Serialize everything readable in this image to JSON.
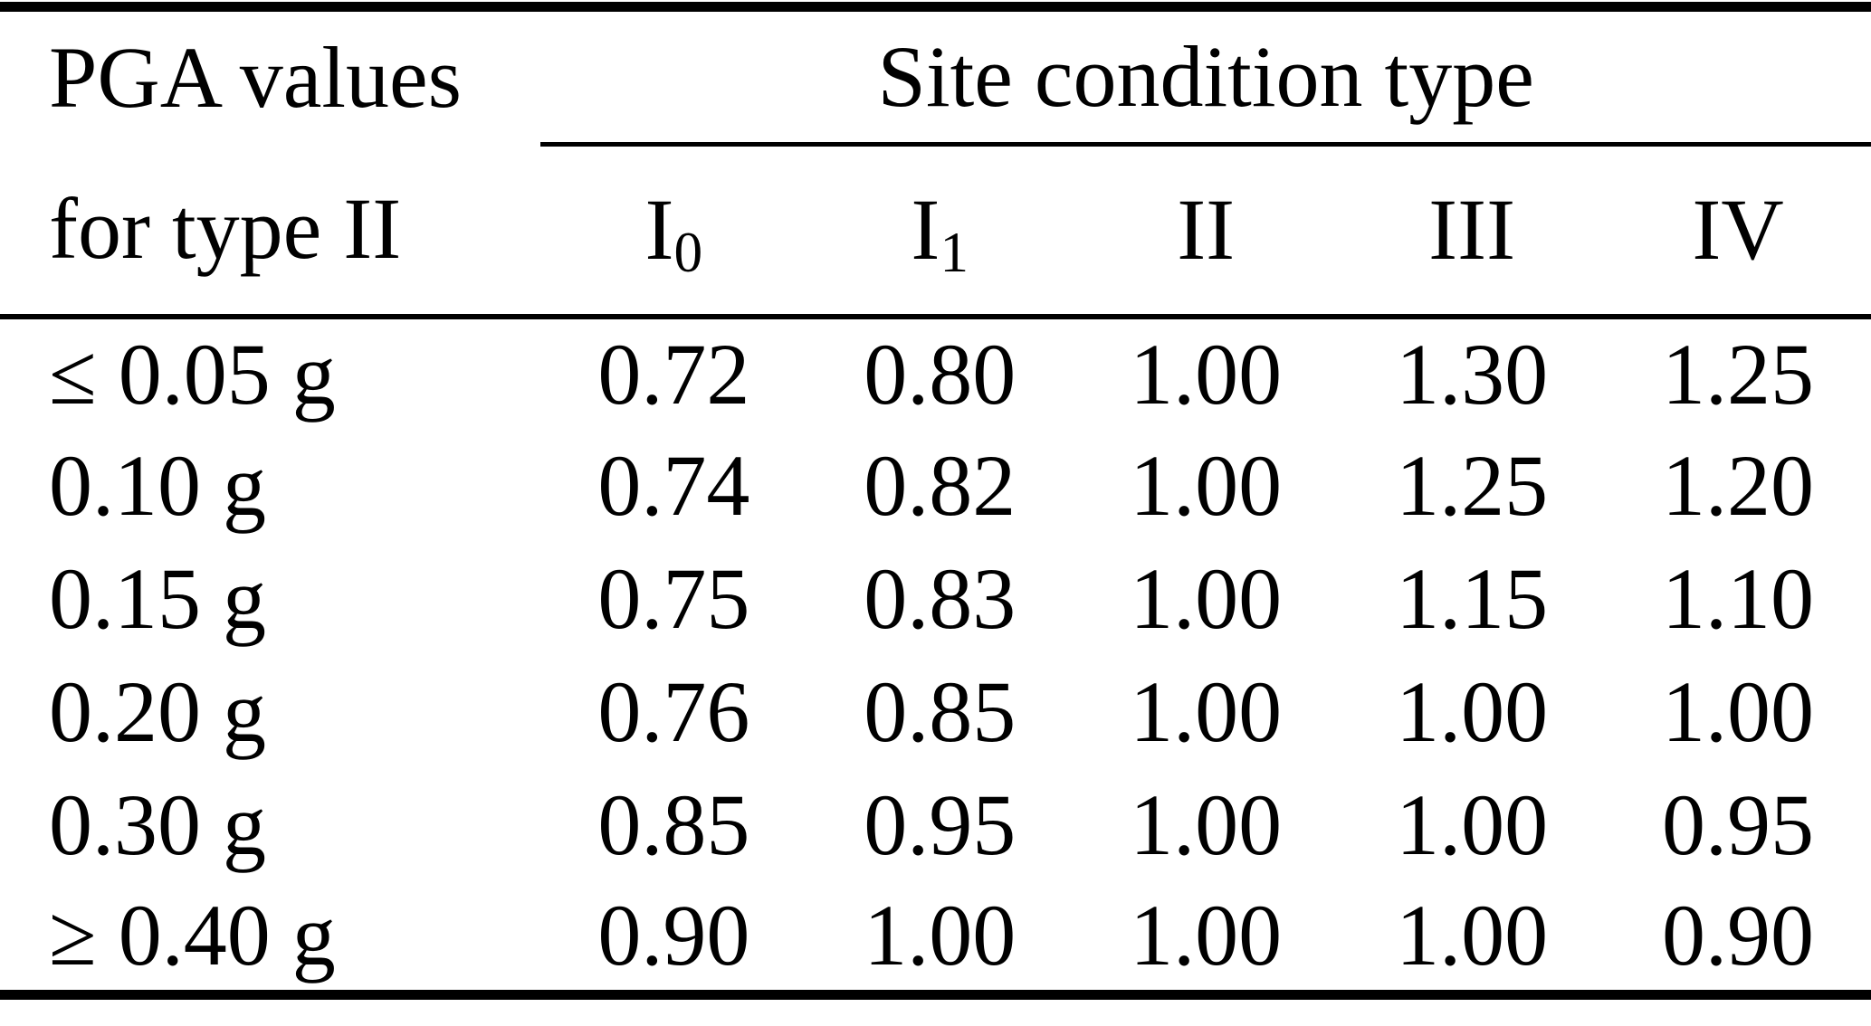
{
  "table": {
    "row_header": {
      "line1": "PGA values",
      "line2": "for type II"
    },
    "spanner": "Site condition type",
    "col_headers": [
      {
        "base": "I",
        "sub": "0"
      },
      {
        "base": "I",
        "sub": "1"
      },
      {
        "base": "II",
        "sub": ""
      },
      {
        "base": "III",
        "sub": ""
      },
      {
        "base": "IV",
        "sub": ""
      }
    ],
    "rows": [
      {
        "label": "≤ 0.05 g",
        "values": [
          "0.72",
          "0.80",
          "1.00",
          "1.30",
          "1.25"
        ]
      },
      {
        "label": "0.10 g",
        "values": [
          "0.74",
          "0.82",
          "1.00",
          "1.25",
          "1.20"
        ]
      },
      {
        "label": "0.15 g",
        "values": [
          "0.75",
          "0.83",
          "1.00",
          "1.15",
          "1.10"
        ]
      },
      {
        "label": "0.20 g",
        "values": [
          "0.76",
          "0.85",
          "1.00",
          "1.00",
          "1.00"
        ]
      },
      {
        "label": "0.30 g",
        "values": [
          "0.85",
          "0.95",
          "1.00",
          "1.00",
          "0.95"
        ]
      },
      {
        "label": "≥ 0.40 g",
        "values": [
          "0.90",
          "1.00",
          "1.00",
          "1.00",
          "0.90"
        ]
      }
    ],
    "colors": {
      "text": "#000000",
      "background": "#ffffff",
      "rule": "#000000"
    }
  }
}
